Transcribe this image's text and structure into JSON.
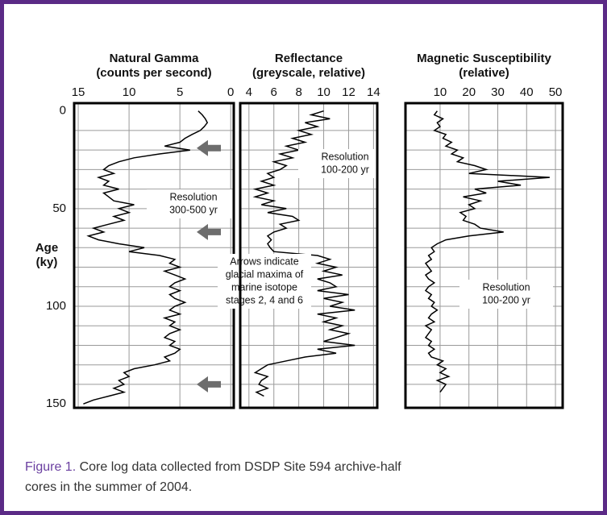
{
  "chart_data": [
    {
      "type": "line",
      "title": [
        "Natural Gamma",
        "(counts per second)"
      ],
      "y_label": [
        "Age",
        "(ky)"
      ],
      "xlim": [
        15.4,
        -0.3
      ],
      "xticks": [
        15,
        10,
        5,
        0
      ],
      "ylim": [
        -4,
        152
      ],
      "yticks": [
        0,
        50,
        100,
        150
      ],
      "ygrid": [
        10,
        20,
        30,
        40,
        50,
        60,
        70,
        80,
        90,
        100,
        110,
        120,
        130,
        140
      ],
      "grid": true,
      "annotations": [
        [
          "Resolution",
          "300-500 yr"
        ]
      ],
      "arrow_ages": [
        19,
        62,
        140
      ],
      "y": [
        0,
        2,
        4,
        6,
        8,
        10,
        12,
        14,
        16,
        18,
        20,
        22,
        24,
        26,
        28,
        30,
        32,
        34,
        36,
        38,
        40,
        42,
        44,
        46,
        48,
        50,
        52,
        54,
        56,
        58,
        60,
        62,
        64,
        66,
        68,
        70,
        72,
        74,
        76,
        78,
        80,
        82,
        84,
        86,
        88,
        90,
        92,
        94,
        96,
        98,
        100,
        102,
        104,
        106,
        108,
        110,
        112,
        114,
        116,
        118,
        120,
        122,
        124,
        126,
        128,
        130,
        132,
        134,
        136,
        138,
        140,
        142,
        144,
        146,
        148,
        150
      ],
      "series": [
        {
          "color": "#000000",
          "values": [
            3.2,
            2.8,
            2.5,
            2.3,
            2.6,
            3.0,
            3.8,
            4.5,
            5.0,
            6.5,
            4.0,
            7.0,
            9.5,
            11.0,
            12.0,
            12.5,
            11.5,
            13.0,
            12.0,
            12.5,
            11.0,
            12.5,
            12.0,
            11.5,
            9.5,
            11.0,
            10.0,
            11.5,
            10.5,
            12.0,
            13.5,
            12.5,
            14.0,
            13.0,
            11.0,
            8.5,
            10.0,
            7.0,
            5.5,
            6.0,
            5.0,
            6.5,
            5.5,
            4.5,
            5.5,
            6.0,
            5.0,
            6.0,
            5.5,
            4.5,
            5.5,
            6.0,
            5.0,
            6.5,
            5.5,
            6.0,
            5.0,
            6.0,
            6.5,
            5.5,
            6.0,
            5.0,
            5.5,
            6.5,
            6.0,
            7.5,
            9.5,
            10.5,
            10.0,
            11.0,
            10.5,
            11.5,
            10.5,
            12.0,
            13.5,
            14.5
          ]
        }
      ]
    },
    {
      "type": "line",
      "title": [
        "Reflectance",
        "(greyscale, relative)"
      ],
      "xlim": [
        3.3,
        14.3
      ],
      "xticks": [
        4,
        6,
        8,
        10,
        12,
        14
      ],
      "ylim": [
        -4,
        152
      ],
      "ygrid": [
        10,
        20,
        30,
        40,
        50,
        60,
        70,
        80,
        90,
        100,
        110,
        120,
        130,
        140
      ],
      "grid": true,
      "annotations": [
        [
          "Resolution",
          "100-200 yr"
        ],
        [
          "Arrows indicate",
          "glacial maxima of",
          "marine isotope",
          "stages 2, 4 and 6"
        ]
      ],
      "y": [
        0,
        2,
        4,
        6,
        8,
        10,
        12,
        14,
        16,
        18,
        20,
        22,
        24,
        26,
        28,
        30,
        32,
        34,
        36,
        38,
        40,
        42,
        44,
        46,
        48,
        50,
        52,
        54,
        56,
        58,
        60,
        62,
        64,
        66,
        68,
        70,
        72,
        74,
        76,
        78,
        80,
        82,
        84,
        86,
        88,
        90,
        92,
        94,
        96,
        98,
        100,
        102,
        104,
        106,
        108,
        110,
        112,
        114,
        116,
        118,
        120,
        122,
        124,
        126,
        128,
        130,
        132,
        134,
        136,
        138,
        140,
        142,
        144,
        146
      ],
      "series": [
        {
          "color": "#000000",
          "values": [
            10,
            9,
            10.5,
            8.5,
            9.5,
            8,
            9,
            7.5,
            8.5,
            7,
            8,
            6.5,
            7.5,
            6,
            7,
            6.5,
            5.5,
            6,
            5,
            6,
            4.5,
            5.5,
            4.5,
            6,
            5,
            7,
            5.5,
            7.5,
            8,
            6.5,
            7,
            6,
            5.5,
            5.8,
            5.5,
            5.7,
            6,
            9.5,
            10.5,
            9.5,
            11,
            10,
            11.5,
            9.5,
            10.5,
            11,
            9.5,
            12,
            10,
            11.5,
            10.5,
            12.5,
            9.5,
            11,
            10,
            11.5,
            10.5,
            12,
            11,
            10,
            12.5,
            9.5,
            11,
            8.5,
            7,
            5.5,
            5,
            4.5,
            5.5,
            5,
            4.8,
            5.5,
            4.6,
            5.2
          ]
        }
      ]
    },
    {
      "type": "line",
      "title": [
        "Magnetic Susceptibility",
        "(relative)"
      ],
      "xlim": [
        -2,
        52.5
      ],
      "xticks": [
        10,
        20,
        30,
        40,
        50
      ],
      "ylim": [
        -4,
        152
      ],
      "ygrid": [
        10,
        20,
        30,
        40,
        50,
        60,
        70,
        80,
        90,
        100,
        110,
        120,
        130,
        140
      ],
      "grid": true,
      "annotations": [
        [
          "Resolution",
          "100-200 yr"
        ]
      ],
      "y": [
        0,
        2,
        4,
        6,
        8,
        10,
        12,
        14,
        16,
        18,
        20,
        22,
        24,
        26,
        28,
        30,
        32,
        34,
        36,
        38,
        40,
        42,
        44,
        46,
        48,
        50,
        52,
        54,
        56,
        58,
        60,
        62,
        64,
        66,
        68,
        70,
        72,
        74,
        76,
        78,
        80,
        82,
        84,
        86,
        88,
        90,
        92,
        94,
        96,
        98,
        100,
        102,
        104,
        106,
        108,
        110,
        112,
        114,
        116,
        118,
        120,
        122,
        124,
        126,
        128,
        130,
        132,
        134,
        136,
        138,
        140,
        142,
        144
      ],
      "series": [
        {
          "color": "#000000",
          "values": [
            9,
            8,
            11,
            9,
            10,
            8,
            12,
            11,
            14,
            12,
            16,
            14,
            18,
            16,
            22,
            26,
            20,
            48,
            30,
            38,
            22,
            26,
            18,
            24,
            20,
            22,
            17,
            19,
            18,
            22,
            24,
            32,
            20,
            12,
            9,
            7,
            8,
            6,
            7,
            5,
            6,
            7,
            5,
            6,
            8,
            6,
            5,
            7,
            6,
            8,
            7,
            9,
            7,
            6,
            8,
            5,
            7,
            6,
            5,
            7,
            6,
            8,
            6,
            7,
            11,
            9,
            12,
            10,
            13,
            9,
            12,
            11,
            10
          ]
        }
      ]
    }
  ],
  "caption": {
    "label": "Figure 1.",
    "text": "Core log data collected from DSDP Site 594 archive-half cores in the summer of 2004."
  }
}
